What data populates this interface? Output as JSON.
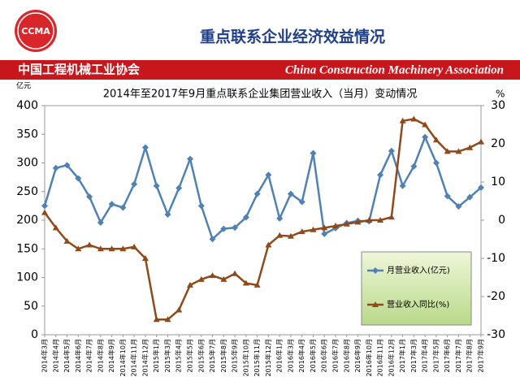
{
  "header": {
    "logo": "CCMA",
    "title": "重点联系企业经济效益情况",
    "org_cn": "中国工程机械工业协会",
    "org_en": "China Construction Machinery Association"
  },
  "chart_data": {
    "type": "line",
    "title": "2014年至2017年9月重点联系企业集团营业收入（当月）变动情况",
    "y_label": "亿元",
    "y2_label": "%",
    "categories": [
      "2014年3月",
      "2014年4月",
      "2014年5月",
      "2014年6月",
      "2014年7月",
      "2014年8月",
      "2014年9月",
      "2014年10月",
      "2014年11月",
      "2014年12月",
      "2015年1月",
      "2015年3月",
      "2015年4月",
      "2015年5月",
      "2015年6月",
      "2015年7月",
      "2015年8月",
      "2015年9月",
      "2015年10月",
      "2015年11月",
      "2015年12月",
      "2016年1月",
      "2016年3月",
      "2016年4月",
      "2016年5月",
      "2016年6月",
      "2016年7月",
      "2016年8月",
      "2016年9月",
      "2016年10月",
      "2016年11月",
      "2016年12月",
      "2017年1月",
      "2017年3月",
      "2017年4月",
      "2017年5月",
      "2017年6月",
      "2017年7月",
      "2017年8月",
      "2017年9月"
    ],
    "series": [
      {
        "name": "月营业收入(亿元)",
        "color": "#4f81b5",
        "marker": "diamond",
        "values": [
          225,
          291,
          296,
          273,
          241,
          196,
          228,
          222,
          263,
          327,
          260,
          210,
          256,
          307,
          225,
          167,
          185,
          187,
          205,
          246,
          279,
          203,
          246,
          232,
          317,
          176,
          186,
          195,
          199,
          198,
          279,
          321,
          260,
          294,
          345,
          300,
          242,
          224,
          240,
          257
        ]
      },
      {
        "name": "营业收入同比(%)",
        "color": "#8e4a1a",
        "marker": "triangle",
        "axis": "y2",
        "values": [
          2,
          -2,
          -5.5,
          -7.5,
          -6.5,
          -7.5,
          -7.5,
          -7.5,
          -7,
          -10,
          -26,
          -26,
          -23.5,
          -17,
          -15.5,
          -14.5,
          -15.5,
          -14,
          -16.5,
          -17,
          -6.5,
          -4,
          -4.2,
          -3,
          -2.5,
          -2,
          -1.5,
          -1,
          -0.5,
          0,
          0,
          0.8,
          26,
          26.5,
          25,
          21,
          18,
          18,
          19,
          20.5
        ]
      }
    ],
    "ylim": [
      0,
      400
    ],
    "yticks": [
      0,
      50,
      100,
      150,
      200,
      250,
      300,
      350,
      400
    ],
    "y2lim": [
      -30,
      30
    ],
    "y2ticks": [
      -30,
      -20,
      -10,
      0,
      10,
      20,
      30
    ],
    "grid": false
  }
}
